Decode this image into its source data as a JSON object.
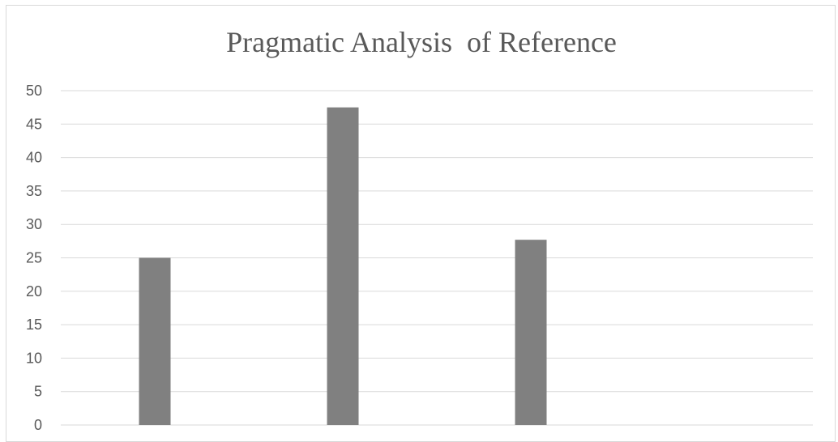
{
  "chart_data": {
    "type": "bar",
    "title": "Pragmatic Analysis  of Reference",
    "xlabel": "",
    "ylabel": "",
    "categories": [
      "",
      "",
      "",
      ""
    ],
    "values": [
      25,
      47.5,
      27.7,
      null
    ],
    "ylim": [
      0,
      50
    ],
    "yticks": [
      0,
      5,
      10,
      15,
      20,
      25,
      30,
      35,
      40,
      45,
      50
    ],
    "ytick_labels": [
      "0",
      "5",
      "10",
      "15",
      "20",
      "25",
      "30",
      "35",
      "40",
      "45",
      "50"
    ],
    "grid": true,
    "legend": "none",
    "colors": {
      "bar": "#808080",
      "grid": "#d9d9d9",
      "text": "#595959",
      "border": "#d9d9d9"
    }
  }
}
